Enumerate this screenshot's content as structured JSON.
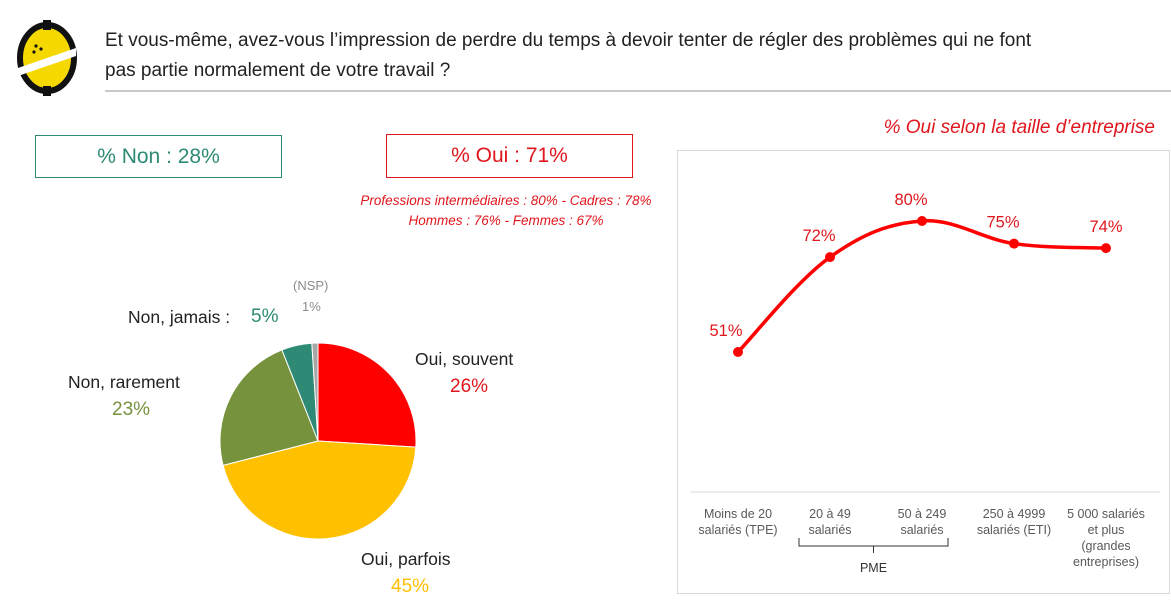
{
  "header": {
    "question": "Et vous-même, avez-vous l’impression de perdre du temps à devoir tenter de régler des problèmes qui ne font\npas partie normalement de votre travail ?"
  },
  "kpi": {
    "non": "% Non : 28%",
    "oui": "% Oui : 71%"
  },
  "notes": {
    "line1": "Professions intermédiaires : 80% - Cadres : 78%",
    "line2": "Hommes : 76% - Femmes : 67%"
  },
  "colors": {
    "red": "#e0161d",
    "teal": "#2e8a75",
    "olive": "#76923c",
    "yellow": "#ffc000",
    "grey": "#a6a6a6"
  },
  "chart_data": [
    {
      "type": "pie",
      "slices": [
        {
          "label": "Oui, souvent",
          "value": 26,
          "display": "26%",
          "color": "#ff0000"
        },
        {
          "label": "Oui, parfois",
          "value": 45,
          "display": "45%",
          "color": "#ffc000"
        },
        {
          "label": "Non, rarement",
          "value": 23,
          "display": "23%",
          "color": "#76923c"
        },
        {
          "label": "Non, jamais  :",
          "value": 5,
          "display": "5%",
          "color": "#2e8a75"
        },
        {
          "label": "(NSP)",
          "value": 1,
          "display": "1%",
          "color": "#a6a6a6"
        }
      ]
    },
    {
      "type": "line",
      "title": "% Oui selon la taille d’entreprise",
      "categories": [
        [
          "Moins de 20",
          "salariés (TPE)"
        ],
        [
          "20 à 49",
          "salariés"
        ],
        [
          "50 à 249",
          "salariés"
        ],
        [
          "250 à 4999",
          "salariés (ETI)"
        ],
        [
          "5 000 salariés",
          "et plus",
          "(grandes",
          "entreprises)"
        ]
      ],
      "values": [
        51,
        72,
        80,
        75,
        74
      ],
      "value_labels": [
        "51%",
        "72%",
        "80%",
        "75%",
        "74%"
      ],
      "group_label": "PME",
      "color": "#ff0000"
    }
  ]
}
